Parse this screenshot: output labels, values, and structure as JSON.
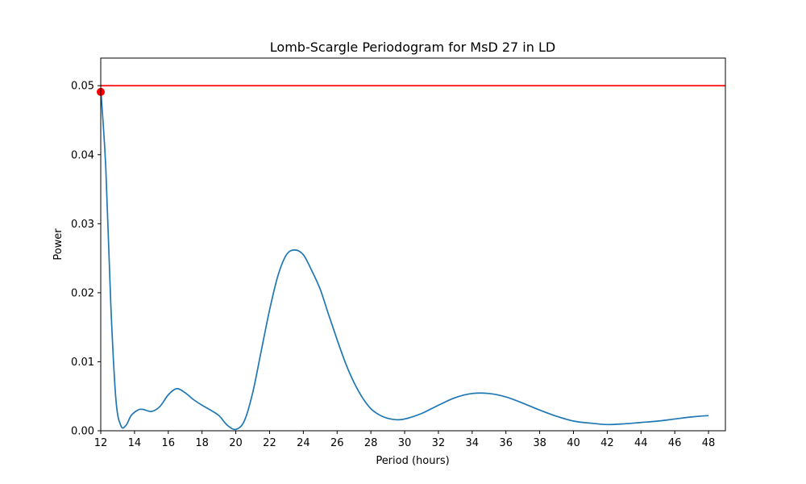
{
  "chart_data": {
    "type": "line",
    "title": "Lomb-Scargle Periodogram for MsD 27 in LD",
    "xlabel": "Period (hours)",
    "ylabel": "Power",
    "xlim": [
      12,
      49
    ],
    "ylim": [
      0,
      0.054
    ],
    "xticks": [
      12,
      14,
      16,
      18,
      20,
      22,
      24,
      26,
      28,
      30,
      32,
      34,
      36,
      38,
      40,
      42,
      44,
      46,
      48
    ],
    "yticks": [
      0,
      0.01,
      0.02,
      0.03,
      0.04,
      0.05
    ],
    "ytick_labels": [
      "0.00",
      "0.01",
      "0.02",
      "0.03",
      "0.04",
      "0.05"
    ],
    "grid": false,
    "series": [
      {
        "color": "#1f77b4",
        "x": [
          12.0,
          12.3,
          12.6,
          12.9,
          13.2,
          13.5,
          13.8,
          14.2,
          14.5,
          15.0,
          15.5,
          16.0,
          16.5,
          17.0,
          17.5,
          18.0,
          18.5,
          19.0,
          19.5,
          20.0,
          20.5,
          21.0,
          21.5,
          22.0,
          22.5,
          23.0,
          23.5,
          24.0,
          24.5,
          25.0,
          25.5,
          26.0,
          26.5,
          27.0,
          27.5,
          28.0,
          28.5,
          29.0,
          29.5,
          30.0,
          31.0,
          32.0,
          33.0,
          34.0,
          35.0,
          36.0,
          37.0,
          38.0,
          39.0,
          40.0,
          41.0,
          42.0,
          43.0,
          44.0,
          45.0,
          46.0,
          47.0,
          48.0
        ],
        "y": [
          0.0495,
          0.038,
          0.018,
          0.0045,
          0.0007,
          0.0008,
          0.0022,
          0.003,
          0.0031,
          0.0028,
          0.0035,
          0.0052,
          0.0061,
          0.0055,
          0.0045,
          0.0037,
          0.003,
          0.0022,
          0.0008,
          0.0002,
          0.0014,
          0.0055,
          0.0115,
          0.0175,
          0.0225,
          0.0255,
          0.0262,
          0.0255,
          0.0232,
          0.0205,
          0.0168,
          0.0132,
          0.0098,
          0.007,
          0.0048,
          0.0032,
          0.0023,
          0.0018,
          0.0016,
          0.0017,
          0.0025,
          0.0037,
          0.0048,
          0.0054,
          0.0054,
          0.0049,
          0.004,
          0.003,
          0.0021,
          0.0014,
          0.0011,
          0.0009,
          0.001,
          0.0012,
          0.0014,
          0.0017,
          0.002,
          0.0022
        ]
      }
    ],
    "hline": {
      "y": 0.05,
      "color": "#ff0000"
    },
    "marker": {
      "x": 12.0,
      "y": 0.0491,
      "color": "#ff0000"
    }
  }
}
